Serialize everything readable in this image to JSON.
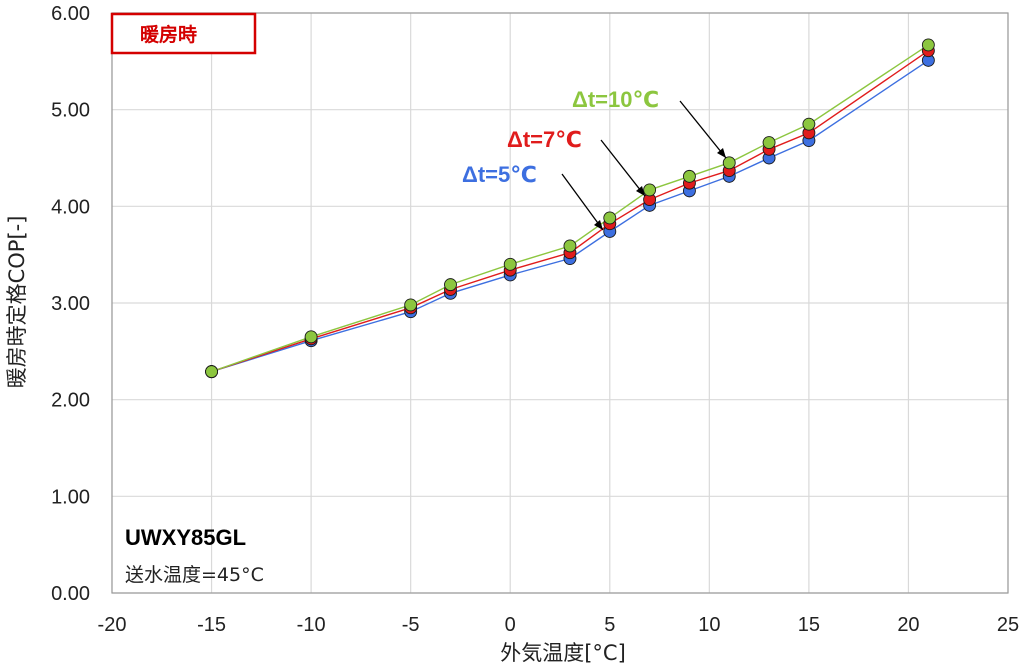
{
  "chart_data": {
    "type": "line",
    "ylabel": "暖房時定格COP[-]",
    "xlabel": "外気温度[°C]",
    "xlim": [
      -20,
      25
    ],
    "ylim": [
      0,
      6
    ],
    "x_ticks": [
      -20,
      -15,
      -10,
      -5,
      0,
      5,
      10,
      15,
      20,
      25
    ],
    "x_tick_labels": [
      "-20",
      "-15",
      "-10",
      "-5",
      "0",
      "5",
      "10",
      "15",
      "20",
      "25"
    ],
    "y_ticks": [
      0,
      1,
      2,
      3,
      4,
      5,
      6
    ],
    "y_tick_labels": [
      "0.00",
      "1.00",
      "2.00",
      "3.00",
      "4.00",
      "5.00",
      "6.00"
    ],
    "grid": true,
    "mode_badge": "暖房時",
    "model_name": "UWXY85GL",
    "condition": "送水温度=45°C",
    "series": [
      {
        "name": "Δt=5℃",
        "color": "#3d6fe0",
        "x": [
          -15,
          -10,
          -5,
          -3,
          0,
          3,
          5,
          7,
          9,
          11,
          13,
          15,
          21
        ],
        "values": [
          2.29,
          2.61,
          2.91,
          3.1,
          3.29,
          3.46,
          3.74,
          4.01,
          4.16,
          4.31,
          4.5,
          4.68,
          5.51
        ]
      },
      {
        "name": "Δt=7℃",
        "color": "#e01c1c",
        "x": [
          -15,
          -10,
          -5,
          -3,
          0,
          3,
          5,
          7,
          9,
          11,
          13,
          15,
          21
        ],
        "values": [
          2.29,
          2.63,
          2.95,
          3.14,
          3.34,
          3.52,
          3.82,
          4.07,
          4.24,
          4.37,
          4.59,
          4.76,
          5.61
        ]
      },
      {
        "name": "Δt=10℃",
        "color": "#8cc63f",
        "x": [
          -15,
          -10,
          -5,
          -3,
          0,
          3,
          5,
          7,
          9,
          11,
          13,
          15,
          21
        ],
        "values": [
          2.29,
          2.65,
          2.98,
          3.19,
          3.4,
          3.59,
          3.88,
          4.17,
          4.31,
          4.45,
          4.66,
          4.85,
          5.67
        ]
      }
    ]
  }
}
